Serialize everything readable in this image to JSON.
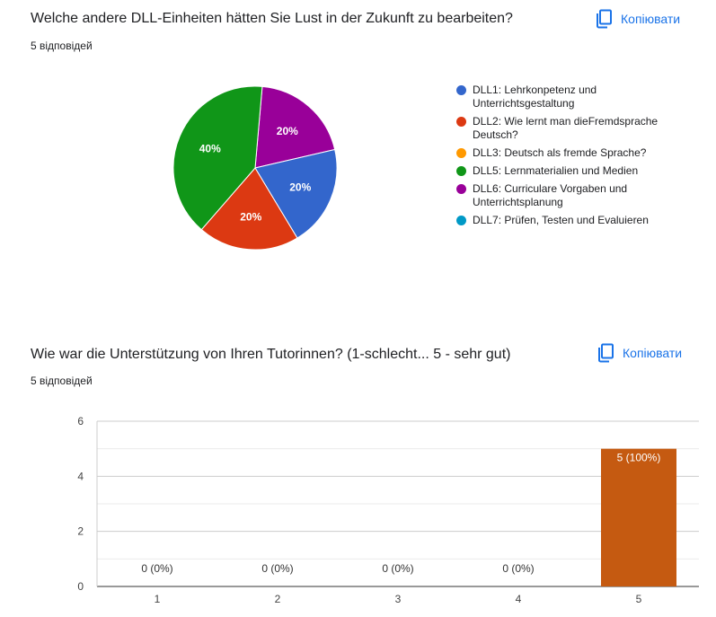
{
  "questions": [
    {
      "title": "Welche andere DLL-Einheiten hätten Sie Lust in der Zukunft zu bearbeiten?",
      "count": "5 відповідей",
      "copy_label": "Копіювати"
    },
    {
      "title": "Wie war die Unterstützung von Ihren Tutorinnen? (1-schlecht... 5 - sehr gut)",
      "count": "5 відповідей",
      "copy_label": "Копіювати"
    }
  ],
  "icons": {
    "copy": "copy-icon"
  },
  "colors": {
    "accent": "#1a73e8",
    "bar": "#c55a11"
  },
  "chart_data": [
    {
      "type": "pie",
      "legend_position": "right",
      "slices": [
        {
          "label": "DLL1: Lehrkonpetenz und Unterrichtsgestaltung",
          "value": 20,
          "display": "20%",
          "color": "#3366cc"
        },
        {
          "label": "DLL2: Wie lernt man dieFremdsprache Deutsch?",
          "value": 20,
          "display": "20%",
          "color": "#dc3912"
        },
        {
          "label": "DLL3: Deutsch als fremde Sprache?",
          "value": 0,
          "display": "",
          "color": "#ff9900"
        },
        {
          "label": "DLL5: Lernmaterialien und Medien",
          "value": 40,
          "display": "40%",
          "color": "#109618"
        },
        {
          "label": "DLL6: Curriculare Vorgaben und Unterrichtsplanung",
          "value": 20,
          "display": "20%",
          "color": "#990099"
        },
        {
          "label": "DLL7: Prüfen, Testen und Evaluieren",
          "value": 0,
          "display": "",
          "color": "#0099c6"
        }
      ]
    },
    {
      "type": "bar",
      "categories": [
        "1",
        "2",
        "3",
        "4",
        "5"
      ],
      "values": [
        0,
        0,
        0,
        0,
        5
      ],
      "data_labels": [
        "0 (0%)",
        "0 (0%)",
        "0 (0%)",
        "0 (0%)",
        "5 (100%)"
      ],
      "ylim": [
        0,
        6
      ],
      "yticks": [
        0,
        2,
        4,
        6
      ],
      "grid": true,
      "color": "#c55a11"
    }
  ]
}
